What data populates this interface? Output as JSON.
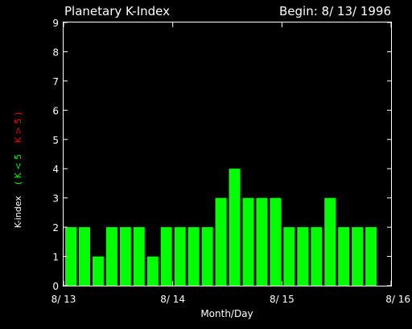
{
  "chart_data": {
    "type": "bar",
    "title": "Planetary K-Index",
    "begin_label": "Begin: 8/ 13/ 1996",
    "xlabel": "Month/Day",
    "ylabel": {
      "prefix": "K-index",
      "low_legend": "( K < 5",
      "high_legend": "K > 5 )"
    },
    "ylim": [
      0,
      9
    ],
    "yticks": [
      0,
      1,
      2,
      3,
      4,
      5,
      6,
      7,
      8,
      9
    ],
    "xticks": [
      "8/ 13",
      "8/ 14",
      "8/ 15",
      "8/ 16"
    ],
    "values": [
      2,
      2,
      1,
      2,
      2,
      2,
      1,
      2,
      2,
      2,
      2,
      3,
      4,
      3,
      3,
      3,
      2,
      2,
      2,
      3,
      2,
      2,
      2
    ],
    "bars_per_day": 8,
    "threshold": 5,
    "colors": {
      "low": "#00ff00",
      "high": "#ff0000",
      "axis": "#ffffff",
      "background": "#000000"
    },
    "grid": false
  }
}
